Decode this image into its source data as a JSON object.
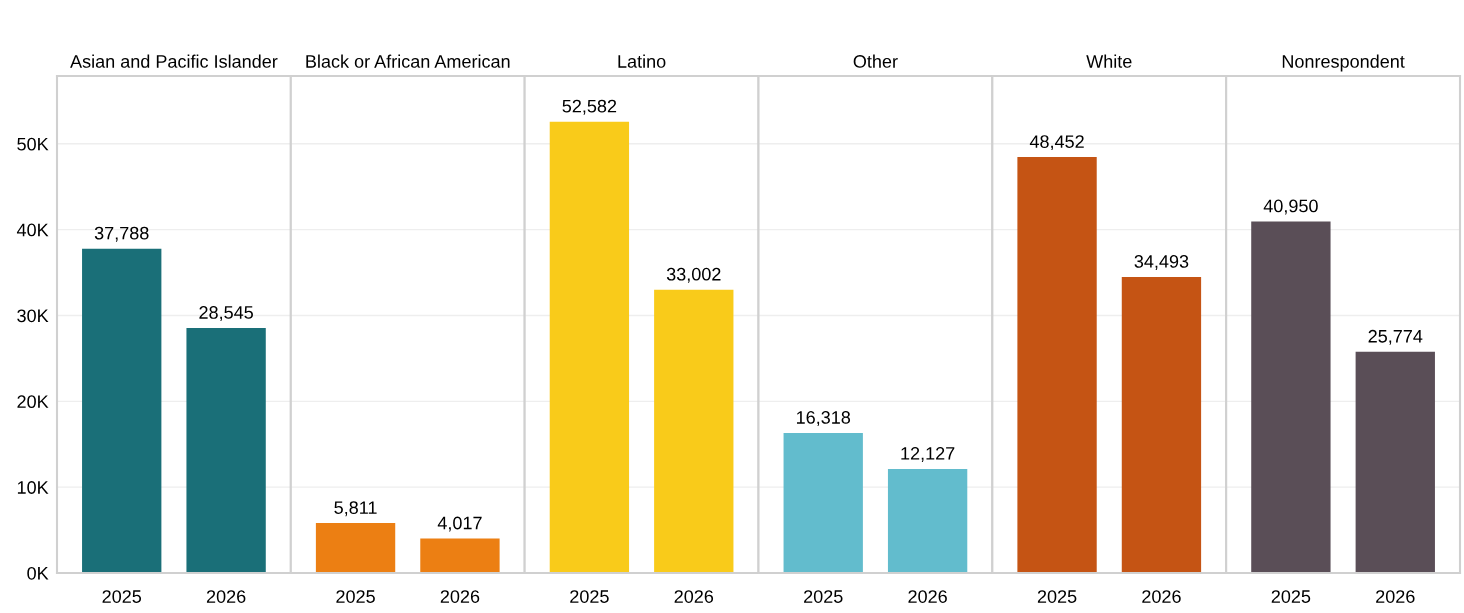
{
  "chart_data": [
    {
      "type": "bar",
      "title": "Asian and Pacific Islander",
      "categories": [
        "2025",
        "2026"
      ],
      "values": [
        37788,
        28545
      ],
      "colors": [
        "#1a6f78",
        "#1a6f78"
      ],
      "value_labels": [
        "37,788",
        "28,545"
      ],
      "ylim": [
        0,
        57900
      ],
      "yticks": [
        {
          "value": 0,
          "label": "0K"
        },
        {
          "value": 10000,
          "label": "10K"
        },
        {
          "value": 20000,
          "label": "20K"
        },
        {
          "value": 30000,
          "label": "30K"
        },
        {
          "value": 40000,
          "label": "40K"
        },
        {
          "value": 50000,
          "label": "50K"
        }
      ],
      "grid": "y"
    },
    {
      "type": "bar",
      "title": "Black or African American",
      "categories": [
        "2025",
        "2026"
      ],
      "values": [
        5811,
        4017
      ],
      "colors": [
        "#ec7f13",
        "#ec7f13"
      ],
      "value_labels": [
        "5,811",
        "4,017"
      ],
      "ylim": [
        0,
        57900
      ],
      "yticks": [
        {
          "value": 0,
          "label": null
        },
        {
          "value": 10000,
          "label": null
        },
        {
          "value": 20000,
          "label": null
        },
        {
          "value": 30000,
          "label": null
        },
        {
          "value": 40000,
          "label": null
        },
        {
          "value": 50000,
          "label": null
        }
      ],
      "grid": "y",
      "tick_labels": "x"
    },
    {
      "type": "bar",
      "title": "Latino",
      "categories": [
        "2025",
        "2026"
      ],
      "values": [
        52582,
        33002
      ],
      "colors": [
        "#f9cb1a",
        "#f9cb1a"
      ],
      "value_labels": [
        "52,582",
        "33,002"
      ],
      "ylim": [
        0,
        57900
      ],
      "yticks": [
        {
          "value": 0,
          "label": null
        },
        {
          "value": 10000,
          "label": null
        },
        {
          "value": 20000,
          "label": null
        },
        {
          "value": 30000,
          "label": null
        },
        {
          "value": 40000,
          "label": null
        },
        {
          "value": 50000,
          "label": null
        }
      ],
      "grid": "y",
      "tick_labels": "x"
    },
    {
      "type": "bar",
      "title": "Other",
      "categories": [
        "2025",
        "2026"
      ],
      "values": [
        16318,
        12127
      ],
      "colors": [
        "#62bccd",
        "#62bccd"
      ],
      "value_labels": [
        "16,318",
        "12,127"
      ],
      "ylim": [
        0,
        57900
      ],
      "yticks": [
        {
          "value": 0,
          "label": null
        },
        {
          "value": 10000,
          "label": null
        },
        {
          "value": 20000,
          "label": null
        },
        {
          "value": 30000,
          "label": null
        },
        {
          "value": 40000,
          "label": null
        },
        {
          "value": 50000,
          "label": null
        }
      ],
      "grid": "y",
      "tick_labels": "x"
    },
    {
      "type": "bar",
      "title": "White",
      "categories": [
        "2025",
        "2026"
      ],
      "values": [
        48452,
        34493
      ],
      "colors": [
        "#c55414",
        "#c55414"
      ],
      "value_labels": [
        "48,452",
        "34,493"
      ],
      "ylim": [
        0,
        57900
      ],
      "yticks": [
        {
          "value": 0,
          "label": null
        },
        {
          "value": 10000,
          "label": null
        },
        {
          "value": 20000,
          "label": null
        },
        {
          "value": 30000,
          "label": null
        },
        {
          "value": 40000,
          "label": null
        },
        {
          "value": 50000,
          "label": null
        }
      ],
      "grid": "y",
      "tick_labels": "x"
    },
    {
      "type": "bar",
      "title": "Nonrespondent",
      "categories": [
        "2025",
        "2026"
      ],
      "values": [
        40950,
        25774
      ],
      "colors": [
        "#5a4e57",
        "#5a4e57"
      ],
      "value_labels": [
        "40,950",
        "25,774"
      ],
      "ylim": [
        0,
        57900
      ],
      "yticks": [
        {
          "value": 0,
          "label": null
        },
        {
          "value": 10000,
          "label": null
        },
        {
          "value": 20000,
          "label": null
        },
        {
          "value": 30000,
          "label": null
        },
        {
          "value": 40000,
          "label": null
        },
        {
          "value": 50000,
          "label": null
        }
      ],
      "grid": "y",
      "tick_labels": "x"
    }
  ]
}
